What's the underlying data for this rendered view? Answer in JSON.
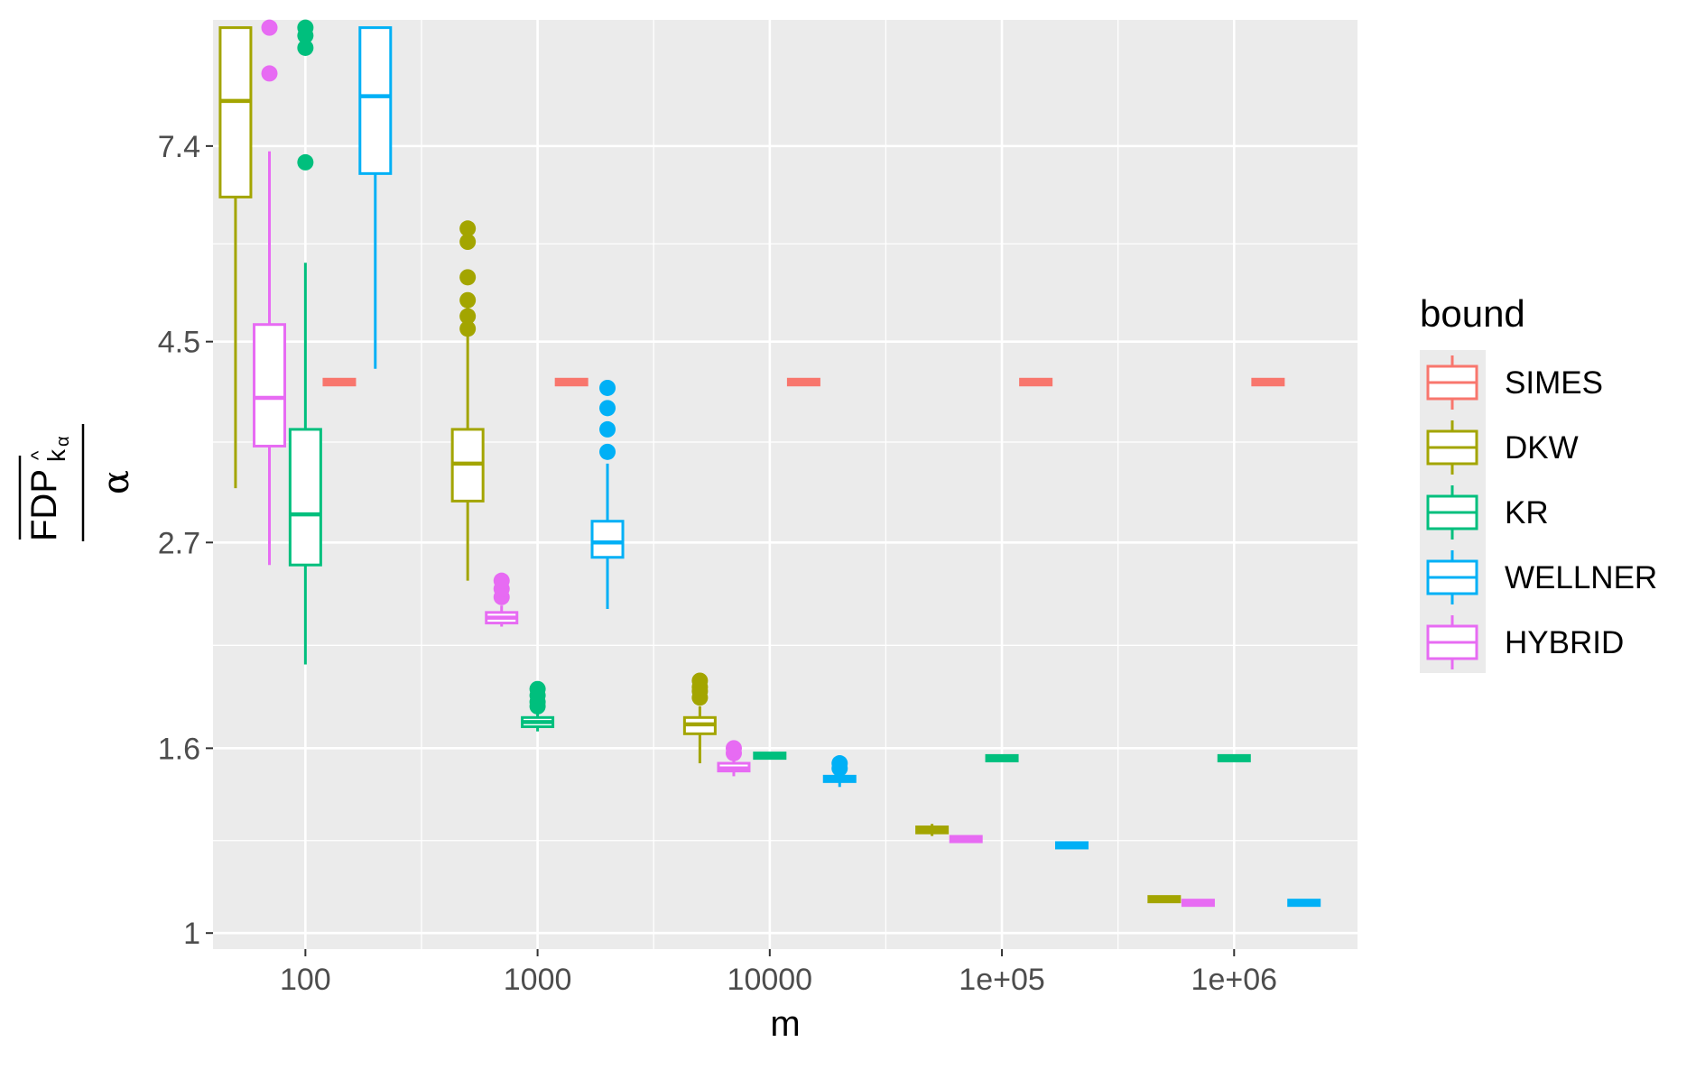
{
  "chart_data": {
    "type": "boxplot",
    "xlabel": "m",
    "ylabel": {
      "fdp": "FDP",
      "sub": "k",
      "sub2": "α",
      "hat": "^",
      "den": "α"
    },
    "x_scale": "log10",
    "y_scale": "log",
    "x_ticks": [
      {
        "value": 100,
        "label": "100"
      },
      {
        "value": 1000,
        "label": "1000"
      },
      {
        "value": 10000,
        "label": "10000"
      },
      {
        "value": 100000,
        "label": "1e+05"
      },
      {
        "value": 1000000,
        "label": "1e+06"
      }
    ],
    "y_ticks": [
      {
        "value": 1,
        "label": "1"
      },
      {
        "value": 1.6,
        "label": "1.6"
      },
      {
        "value": 2.7,
        "label": "2.7"
      },
      {
        "value": 4.5,
        "label": "4.5"
      },
      {
        "value": 7.4,
        "label": "7.4"
      }
    ],
    "xlim": [
      40,
      3400000
    ],
    "ylim": [
      0.96,
      10.2
    ],
    "grid": true,
    "legend": {
      "title": "bound",
      "position": "right",
      "entries": [
        "SIMES",
        "DKW",
        "KR",
        "WELLNER",
        "HYBRID"
      ]
    },
    "colors": {
      "SIMES": "#F8766D",
      "DKW": "#A3A500",
      "KR": "#00BF7D",
      "WELLNER": "#00B0F6",
      "HYBRID": "#E76BF3"
    },
    "series": [
      {
        "name": "SIMES",
        "boxes": [
          {
            "x": 140,
            "lower": 4.03,
            "q1": 4.03,
            "median": 4.06,
            "q3": 4.09,
            "upper": 4.09,
            "outliers": []
          },
          {
            "x": 1400,
            "lower": 4.03,
            "q1": 4.03,
            "median": 4.06,
            "q3": 4.09,
            "upper": 4.09,
            "outliers": []
          },
          {
            "x": 14000,
            "lower": 4.03,
            "q1": 4.03,
            "median": 4.06,
            "q3": 4.09,
            "upper": 4.09,
            "outliers": []
          },
          {
            "x": 140000,
            "lower": 4.03,
            "q1": 4.03,
            "median": 4.06,
            "q3": 4.09,
            "upper": 4.09,
            "outliers": []
          },
          {
            "x": 1400000,
            "lower": 4.03,
            "q1": 4.03,
            "median": 4.06,
            "q3": 4.09,
            "upper": 4.09,
            "outliers": []
          }
        ]
      },
      {
        "name": "DKW",
        "boxes": [
          {
            "x": 50,
            "lower": 3.1,
            "q1": 6.5,
            "median": 8.3,
            "q3": 10.0,
            "upper": 10.0,
            "outliers": []
          },
          {
            "x": 500,
            "lower": 2.45,
            "q1": 3.0,
            "median": 3.3,
            "q3": 3.6,
            "upper": 4.6,
            "outliers": [
              4.65,
              4.8,
              5.0,
              5.3,
              5.8,
              6.0
            ]
          },
          {
            "x": 5000,
            "lower": 1.54,
            "q1": 1.66,
            "median": 1.7,
            "q3": 1.73,
            "upper": 1.78,
            "outliers": [
              1.82,
              1.85,
              1.87,
              1.9
            ]
          },
          {
            "x": 50000,
            "lower": 1.28,
            "q1": 1.29,
            "median": 1.3,
            "q3": 1.31,
            "upper": 1.32,
            "outliers": []
          },
          {
            "x": 500000,
            "lower": 1.08,
            "q1": 1.085,
            "median": 1.09,
            "q3": 1.095,
            "upper": 1.1,
            "outliers": []
          }
        ]
      },
      {
        "name": "KR",
        "boxes": [
          {
            "x": 100,
            "lower": 1.98,
            "q1": 2.55,
            "median": 2.9,
            "q3": 3.6,
            "upper": 5.5,
            "outliers": [
              7.1,
              9.5,
              9.8,
              10.0
            ]
          },
          {
            "x": 1000,
            "lower": 1.67,
            "q1": 1.69,
            "median": 1.71,
            "q3": 1.73,
            "upper": 1.76,
            "outliers": [
              1.78,
              1.8,
              1.83,
              1.86
            ]
          },
          {
            "x": 10000,
            "lower": 1.56,
            "q1": 1.565,
            "median": 1.57,
            "q3": 1.575,
            "upper": 1.58,
            "outliers": []
          },
          {
            "x": 100000,
            "lower": 1.55,
            "q1": 1.555,
            "median": 1.56,
            "q3": 1.565,
            "upper": 1.57,
            "outliers": []
          },
          {
            "x": 1000000,
            "lower": 1.55,
            "q1": 1.555,
            "median": 1.56,
            "q3": 1.565,
            "upper": 1.57,
            "outliers": []
          }
        ]
      },
      {
        "name": "WELLNER",
        "boxes": [
          {
            "x": 200,
            "lower": 4.2,
            "q1": 6.9,
            "median": 8.4,
            "q3": 10.0,
            "upper": 10.0,
            "outliers": []
          },
          {
            "x": 2000,
            "lower": 2.28,
            "q1": 2.6,
            "median": 2.7,
            "q3": 2.85,
            "upper": 3.3,
            "outliers": [
              3.4,
              3.6,
              3.8,
              4.0
            ]
          },
          {
            "x": 20000,
            "lower": 1.45,
            "q1": 1.47,
            "median": 1.48,
            "q3": 1.49,
            "upper": 1.51,
            "outliers": [
              1.52,
              1.54
            ]
          },
          {
            "x": 200000,
            "lower": 1.24,
            "q1": 1.245,
            "median": 1.25,
            "q3": 1.255,
            "upper": 1.26,
            "outliers": []
          },
          {
            "x": 2000000,
            "lower": 1.07,
            "q1": 1.075,
            "median": 1.08,
            "q3": 1.085,
            "upper": 1.09,
            "outliers": []
          }
        ]
      },
      {
        "name": "HYBRID",
        "boxes": [
          {
            "x": 70,
            "lower": 2.55,
            "q1": 3.45,
            "median": 3.9,
            "q3": 4.7,
            "upper": 7.3,
            "outliers": [
              8.9,
              10.0
            ]
          },
          {
            "x": 700,
            "lower": 2.18,
            "q1": 2.2,
            "median": 2.23,
            "q3": 2.26,
            "upper": 2.3,
            "outliers": [
              2.35,
              2.4,
              2.45
            ]
          },
          {
            "x": 7000,
            "lower": 1.49,
            "q1": 1.51,
            "median": 1.52,
            "q3": 1.54,
            "upper": 1.56,
            "outliers": [
              1.58,
              1.6
            ]
          },
          {
            "x": 70000,
            "lower": 1.26,
            "q1": 1.265,
            "median": 1.27,
            "q3": 1.275,
            "upper": 1.28,
            "outliers": []
          },
          {
            "x": 700000,
            "lower": 1.07,
            "q1": 1.075,
            "median": 1.08,
            "q3": 1.085,
            "upper": 1.09,
            "outliers": []
          }
        ]
      }
    ]
  }
}
